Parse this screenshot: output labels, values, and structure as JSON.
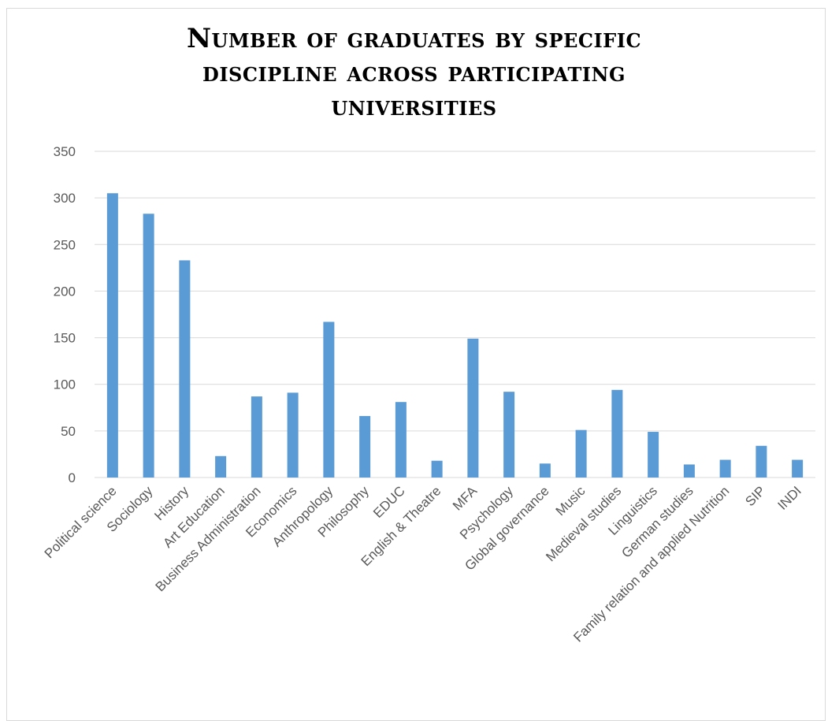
{
  "chart_data": {
    "type": "bar",
    "title_lines": [
      "Number of graduates by specific",
      "discipline across participating",
      "universities"
    ],
    "categories": [
      "Political science",
      "Sociology",
      "History",
      "Art Education",
      "Business Administration",
      "Economics",
      "Anthropology",
      "Philosophy",
      "EDUC",
      "English & Theatre",
      "MFA",
      "Psychology",
      "Global governance",
      "Music",
      "Medieval studies",
      "Linguistics",
      "German studies",
      "Family relation and applied Nutrition",
      "SIP",
      "INDI"
    ],
    "values": [
      305,
      283,
      233,
      23,
      87,
      91,
      167,
      66,
      81,
      18,
      149,
      92,
      15,
      51,
      94,
      49,
      14,
      19,
      34,
      19
    ],
    "ylim": [
      0,
      350
    ],
    "yticks": [
      0,
      50,
      100,
      150,
      200,
      250,
      300,
      350
    ],
    "grid": true,
    "legend": "none",
    "bar_color": "#5b9bd5",
    "grid_color": "#d9d9d9"
  }
}
